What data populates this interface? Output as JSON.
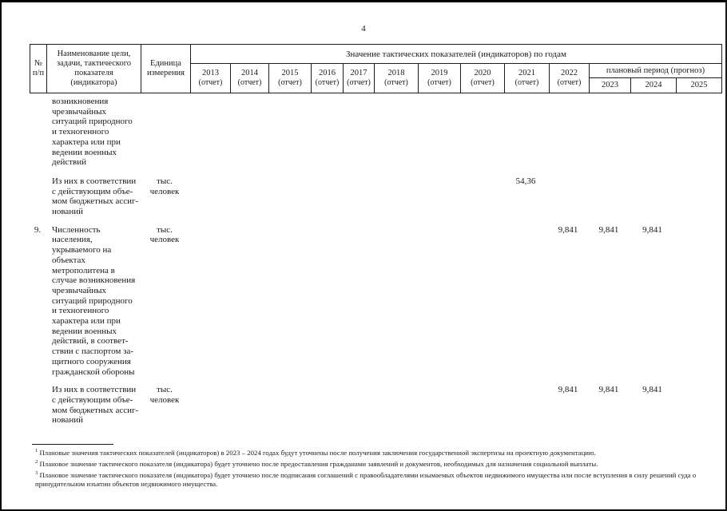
{
  "page": {
    "number": "4"
  },
  "table": {
    "header": {
      "num": "№\nп/п",
      "name": "Наименование цели,\nзадачи, тактического\nпоказателя\n(индикатора)",
      "unit": "Единица\nизмерения",
      "values_title": "Значение тактических показателей (индикаторов) по годам",
      "report_years": [
        {
          "year": "2013",
          "note": "(отчет)"
        },
        {
          "year": "2014",
          "note": "(отчет)"
        },
        {
          "year": "2015",
          "note": "(отчет)"
        },
        {
          "year": "2016",
          "note": "(отчет)"
        },
        {
          "year": "2017",
          "note": "(отчет)"
        },
        {
          "year": "2018",
          "note": "(отчет)"
        },
        {
          "year": "2019",
          "note": "(отчет)"
        },
        {
          "year": "2020",
          "note": "(отчет)"
        },
        {
          "year": "2021",
          "note": "(отчет)"
        },
        {
          "year": "2022",
          "note": "(отчет)"
        }
      ],
      "plan_period_label": "плановый период (прогноз)",
      "plan_years": [
        "2023",
        "2024",
        "2025"
      ]
    },
    "rows": [
      {
        "num": "",
        "name": "возникновения\nчрезвычайных\nситуаций природного\nи техногенного\nхарактера или при\nведении военных\nдействий",
        "unit": "",
        "values": {}
      },
      {
        "num": "",
        "name": "Из них в соответствии\nс действующим объе-\nмом бюджетных ассиг-\nнований",
        "unit": "тыс.\nчеловек",
        "values": {
          "y2021": "54,36"
        }
      },
      {
        "num": "9.",
        "name": "Численность\nнаселения,\nукрываемого на\nобъектах\nметрополитена в\nслучае возникновения\nчрезвычайных\nситуаций природного\nи техногенного\nхарактера или при\nведении военных\nдействий, в соответ-\nствии с паспортом за-\nщитного сооружения\nгражданской обороны",
        "unit": "тыс.\nчеловек",
        "values": {
          "y2022": "9,841",
          "y2023": "9,841",
          "y2024": "9,841"
        }
      },
      {
        "num": "",
        "name": "Из них в соответствии\nс действующим объе-\nмом бюджетных ассиг-\nнований",
        "unit": "тыс.\nчеловек",
        "values": {
          "y2022": "9,841",
          "y2023": "9,841",
          "y2024": "9,841"
        }
      }
    ]
  },
  "footnotes": [
    {
      "marker": "1",
      "text": "Плановые значения тактических показателей (индикаторов) в 2023 – 2024 годах будут уточнены после получения заключения государственной экспертизы на проектную документацию."
    },
    {
      "marker": "2",
      "text": "Плановое значение тактического показателя (индикатора) будет уточнено после предоставления гражданами заявлений и документов, необходимых для назначения социальной выплаты."
    },
    {
      "marker": "3",
      "text": "Плановое значение тактического показателя (индикатора) будет уточнено после подписания соглашений с правообладателями изымаемых объектов недвижимого имущества или после вступления в силу решений суда о принудительном изъятии объектов недвижимого имущества."
    }
  ]
}
